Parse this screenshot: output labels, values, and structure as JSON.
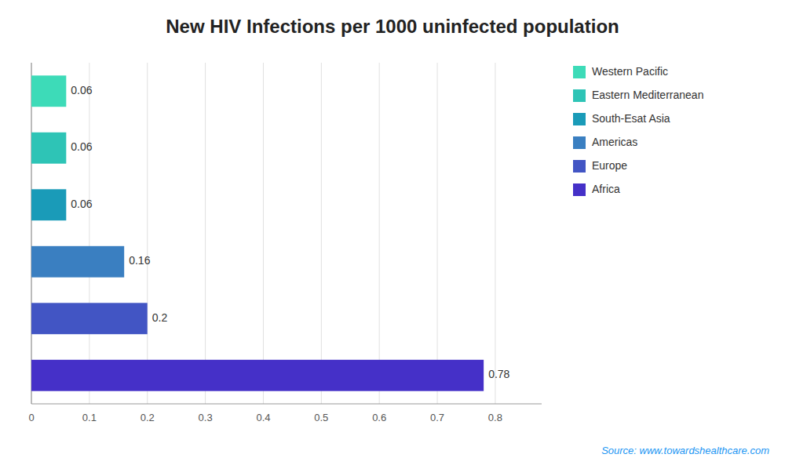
{
  "chart_data": {
    "type": "bar",
    "orientation": "horizontal",
    "title": "New HIV Infections per 1000 uninfected population",
    "categories": [
      "Western Pacific",
      "Eastern Mediterranean",
      "South-Esat Asia",
      "Americas",
      "Europe",
      "Africa"
    ],
    "values": [
      0.06,
      0.06,
      0.06,
      0.16,
      0.2,
      0.78
    ],
    "colors": [
      "#3ddbb8",
      "#2ec4b6",
      "#1a9bb8",
      "#3a7fc1",
      "#4255c4",
      "#4530c8"
    ],
    "xlim": [
      0,
      0.88
    ],
    "xticks": [
      0,
      0.1,
      0.2,
      0.3,
      0.4,
      0.5,
      0.6,
      0.7,
      0.8
    ],
    "grid": true,
    "data_labels": true,
    "tick_labels": "x",
    "legend": "right",
    "source": "Source: www.towardshealthcare.com"
  }
}
